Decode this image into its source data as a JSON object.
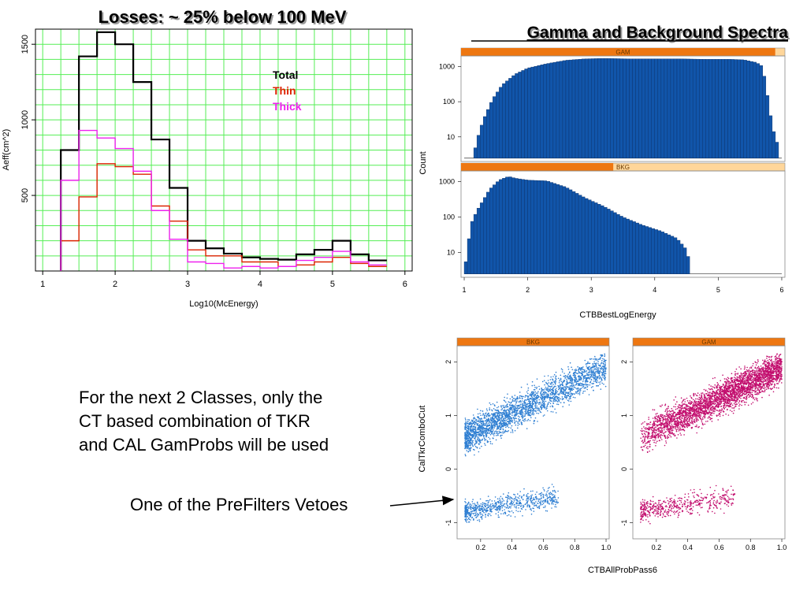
{
  "slide": {
    "body_lines": [
      "For the next 2 Classes, only the",
      "CT based combination of TKR",
      "and CAL GamProbs will be used"
    ],
    "annotation": "One of the PreFilters Vetoes"
  },
  "colors": {
    "total": "#000000",
    "thin": "#dd2200",
    "thick": "#ee22ee",
    "grid": "#55ee55",
    "bars": "#1155aa",
    "strip_fill": "#ffd69a",
    "strip_bar": "#ee7711",
    "bkg_points": "#2f7fd2",
    "gam_points": "#c20e6e"
  },
  "chart_data": [
    {
      "id": "aeff",
      "type": "line",
      "step": true,
      "title": "Losses: ~ 25% below 100 MeV",
      "xlabel": "Log10(McEnergy)",
      "ylabel": "Aeff(cm^2)",
      "xlim": [
        0.9,
        6.1
      ],
      "ylim": [
        0,
        1600
      ],
      "xticks": [
        "1",
        "2",
        "3",
        "4",
        "5",
        "6"
      ],
      "yticks": [
        "500",
        "1000",
        "1500"
      ],
      "grid": true,
      "legend": {
        "position": "top-right",
        "entries": [
          "Total",
          "Thin",
          "Thick"
        ]
      },
      "bin_edges": [
        1.25,
        1.5,
        1.75,
        2.0,
        2.25,
        2.5,
        2.75,
        3.0,
        3.25,
        3.5,
        3.75,
        4.0,
        4.25,
        4.5,
        4.75,
        5.0,
        5.25,
        5.5,
        5.75
      ],
      "series": [
        {
          "name": "Total",
          "values": [
            800,
            1420,
            1580,
            1500,
            1250,
            870,
            550,
            200,
            150,
            115,
            90,
            80,
            75,
            110,
            140,
            200,
            110,
            70
          ]
        },
        {
          "name": "Thin",
          "values": [
            200,
            490,
            710,
            690,
            640,
            430,
            330,
            140,
            100,
            100,
            60,
            60,
            30,
            40,
            60,
            90,
            50,
            30
          ]
        },
        {
          "name": "Thick",
          "values": [
            600,
            930,
            880,
            810,
            660,
            400,
            210,
            60,
            50,
            20,
            30,
            20,
            30,
            70,
            90,
            130,
            60,
            40
          ]
        }
      ]
    },
    {
      "id": "spectra",
      "type": "bar",
      "title": "Gamma and Background Spectra",
      "xlabel": "CTBBestLogEnergy",
      "ylabel": "Count",
      "xlim": [
        0.95,
        6.05
      ],
      "xticks": [
        "1",
        "2",
        "3",
        "4",
        "5",
        "6"
      ],
      "yscale": "log",
      "ylim": [
        2,
        2000
      ],
      "yticks": [
        "10",
        "100",
        "1000"
      ],
      "bin_width": 0.05,
      "panels": [
        {
          "name": "GAM",
          "shape_points": [
            [
              1.15,
              3
            ],
            [
              1.2,
              8
            ],
            [
              1.3,
              30
            ],
            [
              1.45,
              120
            ],
            [
              1.6,
              300
            ],
            [
              1.8,
              600
            ],
            [
              2.0,
              900
            ],
            [
              2.3,
              1200
            ],
            [
              2.6,
              1500
            ],
            [
              2.9,
              1650
            ],
            [
              3.2,
              1700
            ],
            [
              3.6,
              1650
            ],
            [
              4.0,
              1650
            ],
            [
              4.4,
              1650
            ],
            [
              4.8,
              1600
            ],
            [
              5.2,
              1600
            ],
            [
              5.4,
              1550
            ],
            [
              5.6,
              1300
            ],
            [
              5.7,
              1000
            ],
            [
              5.8,
              80
            ],
            [
              5.85,
              20
            ],
            [
              5.95,
              5
            ]
          ]
        },
        {
          "name": "BKG",
          "shape_points": [
            [
              1.0,
              3
            ],
            [
              1.05,
              10
            ],
            [
              1.1,
              60
            ],
            [
              1.2,
              150
            ],
            [
              1.3,
              300
            ],
            [
              1.4,
              600
            ],
            [
              1.55,
              1100
            ],
            [
              1.7,
              1400
            ],
            [
              1.8,
              1250
            ],
            [
              2.0,
              1100
            ],
            [
              2.3,
              1050
            ],
            [
              2.6,
              700
            ],
            [
              2.9,
              350
            ],
            [
              3.2,
              200
            ],
            [
              3.5,
              100
            ],
            [
              3.8,
              60
            ],
            [
              4.1,
              40
            ],
            [
              4.35,
              25
            ],
            [
              4.5,
              12
            ],
            [
              4.55,
              5
            ]
          ]
        }
      ]
    },
    {
      "id": "scatter",
      "type": "scatter",
      "xlabel": "CTBAllProbPass6",
      "ylabel": "CalTkrComboCut",
      "xlim": [
        0.05,
        1.02
      ],
      "ylim": [
        -1.3,
        2.3
      ],
      "xticks": [
        "0.2",
        "0.4",
        "0.6",
        "0.8",
        "1.0"
      ],
      "yticks": [
        "-1",
        "0",
        "1",
        "2"
      ],
      "panels": [
        {
          "name": "BKG",
          "x_range_upper": [
            0.1,
            1.0
          ],
          "x_range_lower": [
            0.1,
            0.7
          ],
          "y_at_low_x": 0.6,
          "y_at_high_x": 1.9,
          "lower_y_center": -0.7
        },
        {
          "name": "GAM",
          "x_range_upper": [
            0.1,
            1.0
          ],
          "x_range_lower": [
            0.1,
            0.7
          ],
          "y_at_low_x": 0.6,
          "y_at_high_x": 1.9,
          "lower_y_center": -0.7
        }
      ]
    }
  ]
}
